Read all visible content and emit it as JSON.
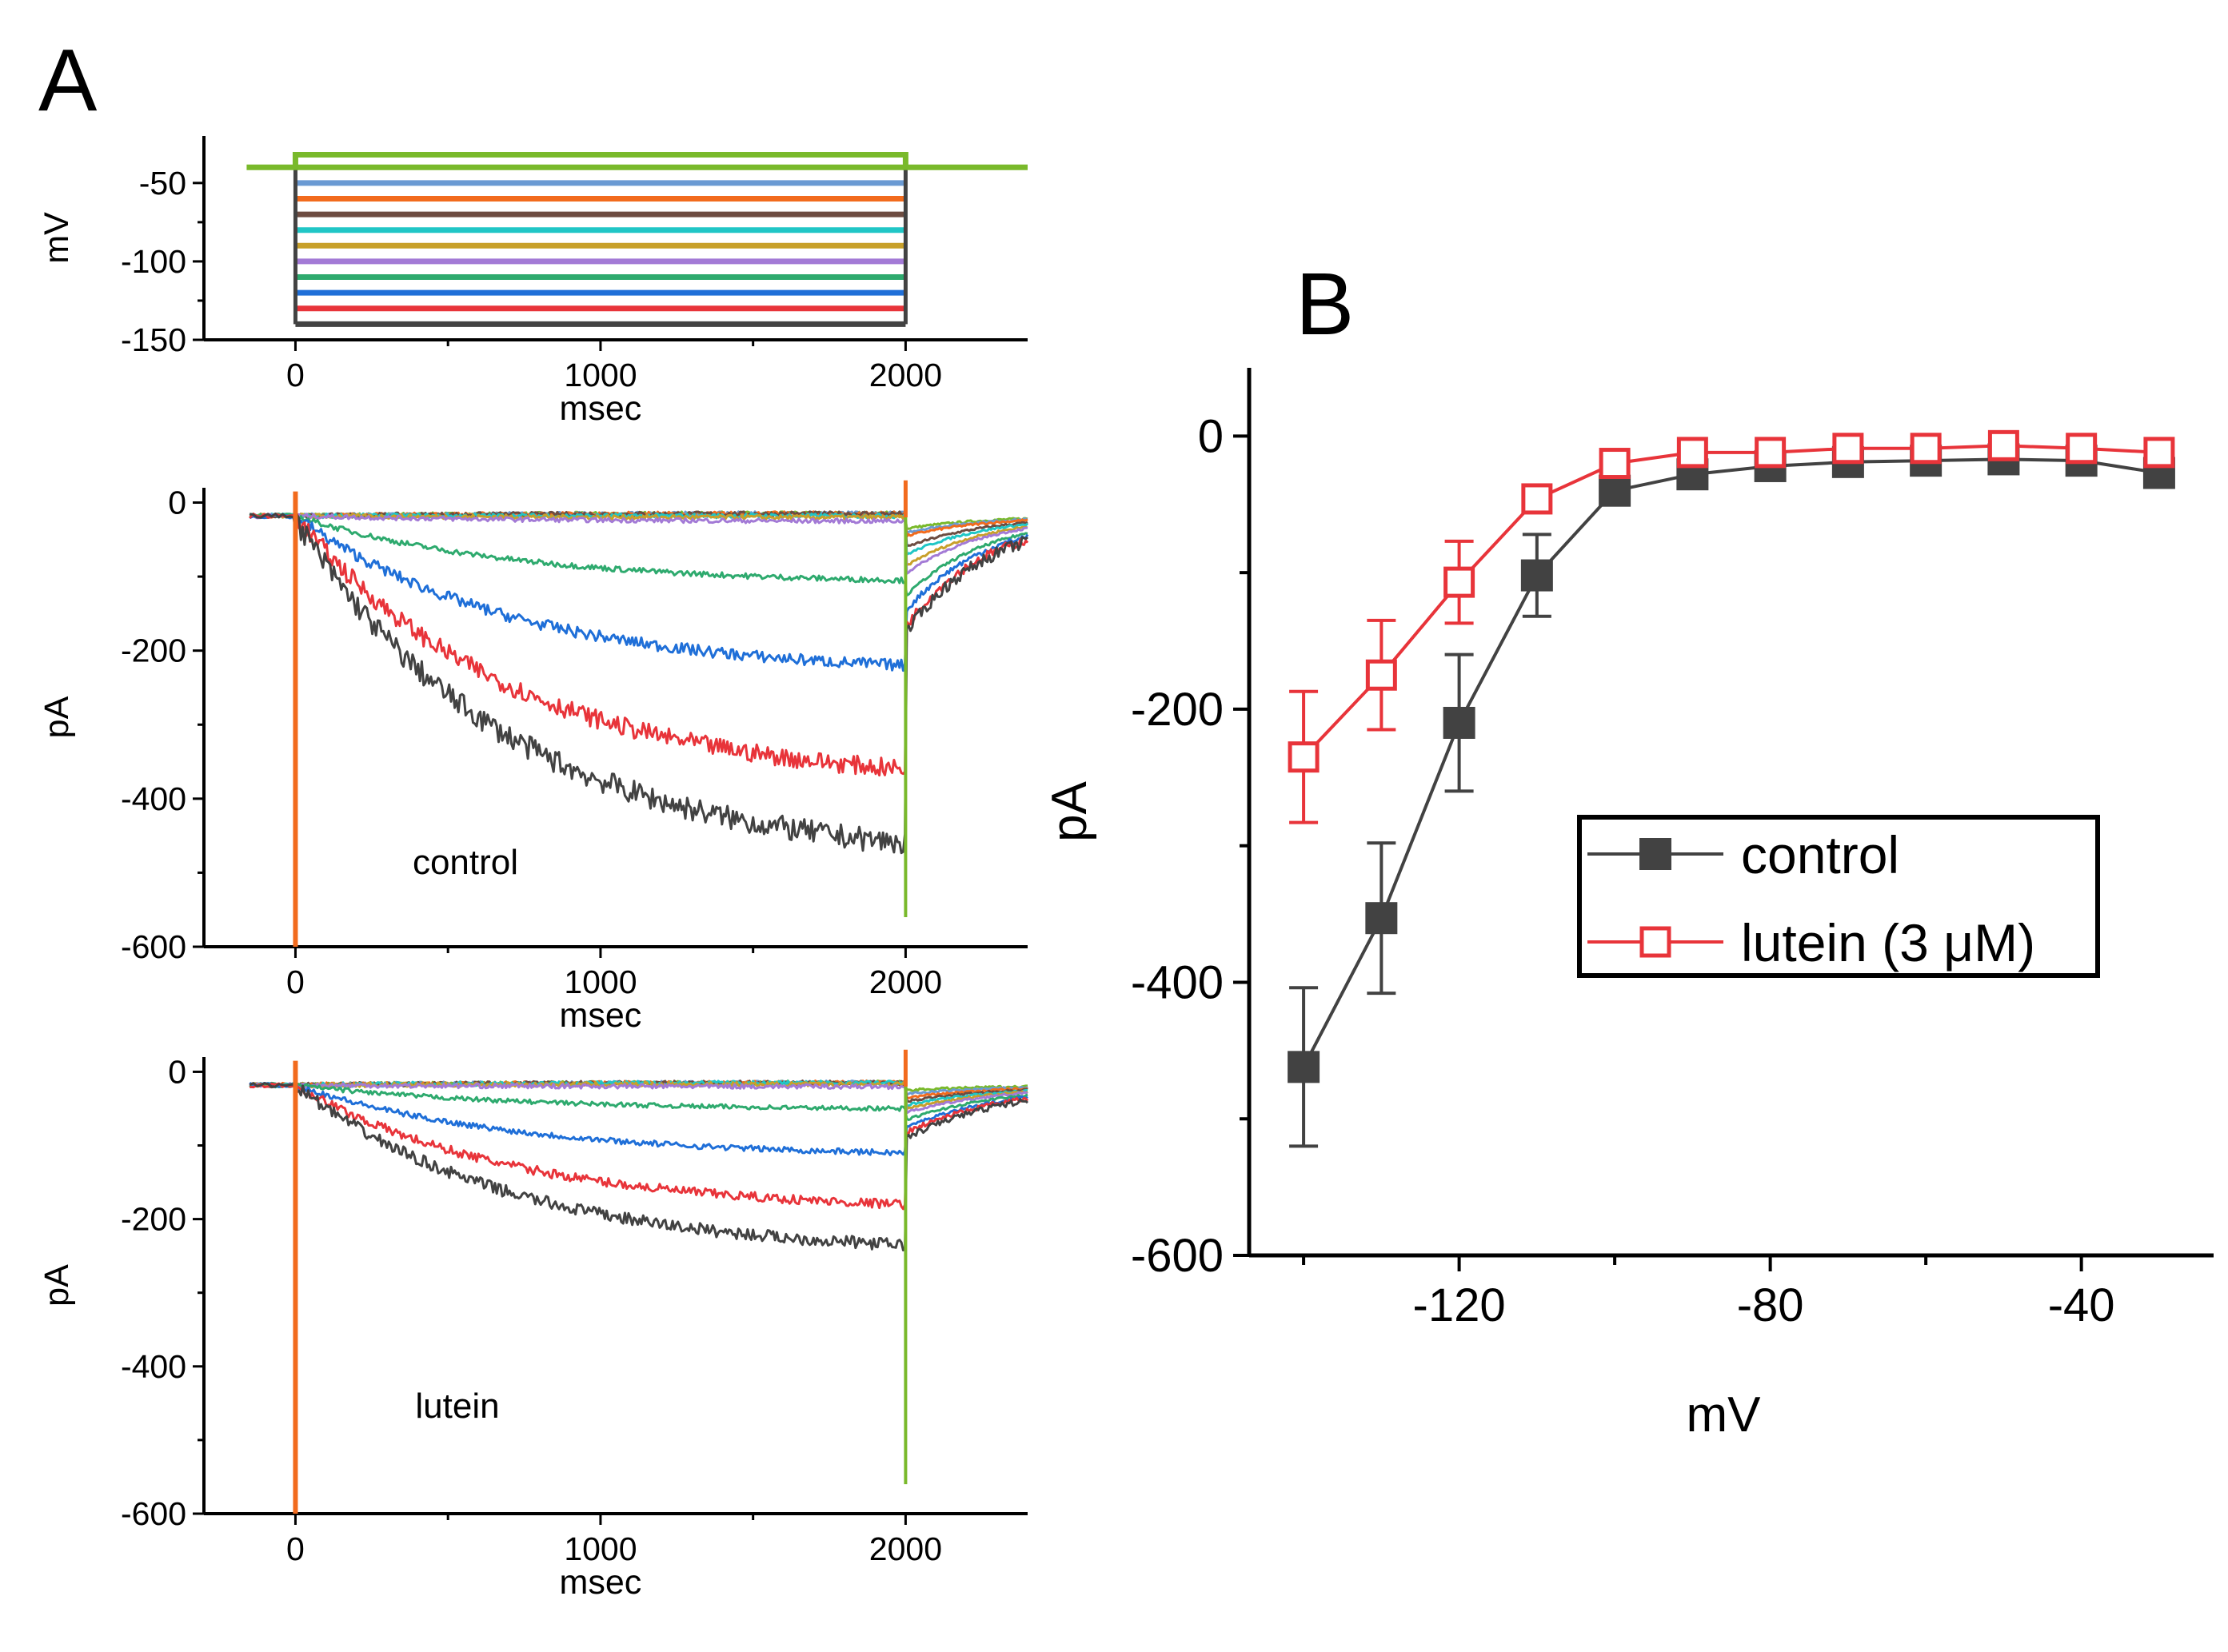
{
  "panels": {
    "a_letter": "A",
    "b_letter": "B"
  },
  "colors": {
    "axis": "#000000",
    "control": "#424242",
    "lutein": "#e8343a",
    "trace_palette": [
      "#424242",
      "#e8343a",
      "#1f6fd8",
      "#2eaa6e",
      "#a37ad6",
      "#c8a02a",
      "#20c6c6",
      "#6d4c41",
      "#f26b1d",
      "#6a9ad3",
      "#79b92b"
    ]
  },
  "chart_data": [
    {
      "id": "A-protocol",
      "type": "line",
      "title": "",
      "xlabel": "msec",
      "ylabel": "mV",
      "xlim": [
        -300,
        2400
      ],
      "ylim": [
        -150,
        -20
      ],
      "xticks": [
        "0",
        "1000",
        "2000"
      ],
      "yticks": [
        "-50",
        "-100",
        "-150"
      ],
      "holding_potential_mv": -40,
      "step_start_ms": 0,
      "step_end_ms": 2000,
      "step_potentials_mv": [
        -140,
        -130,
        -120,
        -110,
        -100,
        -90,
        -80,
        -70,
        -60,
        -50,
        -40
      ]
    },
    {
      "id": "A-control",
      "type": "line",
      "title": "",
      "xlabel": "msec",
      "ylabel": "pA",
      "annotation": "control",
      "xlim": [
        -300,
        2400
      ],
      "ylim": [
        -600,
        20
      ],
      "xticks": [
        "0",
        "1000",
        "2000"
      ],
      "yticks": [
        "0",
        "-200",
        "-400",
        "-600"
      ],
      "traces_end_current_pa": [
        -460,
        -360,
        -220,
        -105,
        -25,
        -20,
        -18,
        -15,
        -15,
        -15,
        -15
      ],
      "traces_tail_current_pa": [
        -175,
        -165,
        -145,
        -125,
        -95,
        -85,
        -70,
        -60,
        -45,
        -40,
        -35
      ]
    },
    {
      "id": "A-lutein",
      "type": "line",
      "title": "",
      "xlabel": "msec",
      "ylabel": "pA",
      "annotation": "lutein",
      "xlim": [
        -300,
        2400
      ],
      "ylim": [
        -600,
        20
      ],
      "xticks": [
        "0",
        "1000",
        "2000"
      ],
      "yticks": [
        "0",
        "-200",
        "-400",
        "-600"
      ],
      "traces_end_current_pa": [
        -235,
        -180,
        -110,
        -50,
        -20,
        -17,
        -15,
        -15,
        -15,
        -15,
        -15
      ],
      "traces_tail_current_pa": [
        -90,
        -82,
        -75,
        -65,
        -55,
        -50,
        -45,
        -40,
        -35,
        -30,
        -25
      ]
    },
    {
      "id": "B",
      "type": "line",
      "title": "",
      "xlabel": "mV",
      "ylabel": "pA",
      "xlim": [
        -147,
        -23
      ],
      "ylim": [
        -600,
        50
      ],
      "xticks": [
        "-120",
        "-80",
        "-40"
      ],
      "yticks": [
        "0",
        "-200",
        "-400",
        "-600"
      ],
      "legend_position": "center-right",
      "x": [
        -140,
        -130,
        -120,
        -110,
        -100,
        -90,
        -80,
        -70,
        -60,
        -50,
        -40,
        -30
      ],
      "series": [
        {
          "name": "control",
          "marker": "filled-square",
          "values": [
            -462,
            -353,
            -210,
            -102,
            -40,
            -28,
            -22,
            -19,
            -18,
            -17,
            -18,
            -27
          ],
          "errors": [
            58,
            55,
            50,
            30,
            8,
            5,
            4,
            4,
            3,
            3,
            3,
            4
          ]
        },
        {
          "name": "lutein (3 μM)",
          "marker": "open-square",
          "values": [
            -235,
            -175,
            -107,
            -46,
            -20,
            -12,
            -12,
            -9,
            -9,
            -7,
            -9,
            -12
          ],
          "errors": [
            48,
            40,
            30,
            8,
            5,
            4,
            3,
            3,
            3,
            3,
            3,
            3
          ]
        }
      ]
    }
  ]
}
